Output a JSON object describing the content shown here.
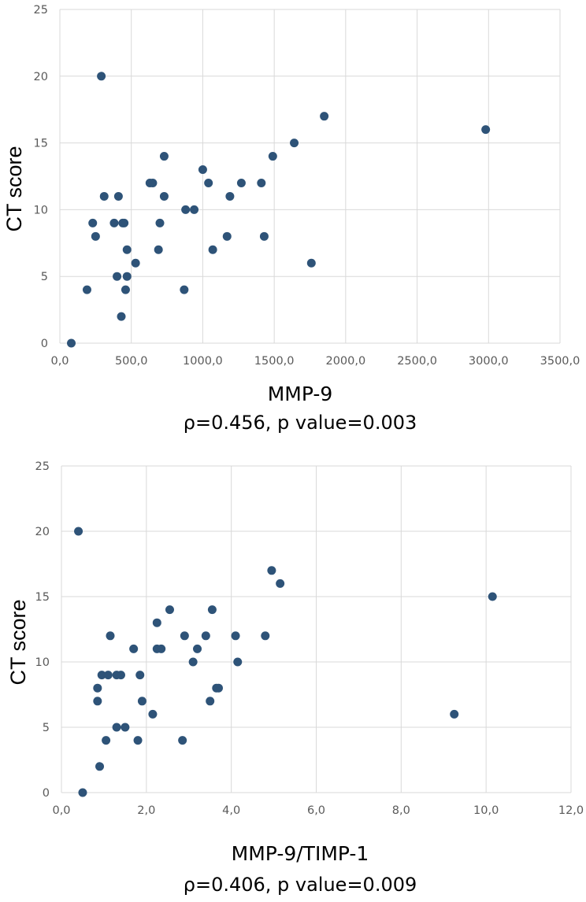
{
  "chart_data": [
    {
      "type": "scatter",
      "title": "",
      "xlabel": "MMP-9",
      "ylabel": "CT score",
      "stat_text": "ρ=0.456, p value=0.003",
      "xlim": [
        0,
        3500
      ],
      "ylim": [
        0,
        25
      ],
      "xticks": [
        0,
        500,
        1000,
        1500,
        2000,
        2500,
        3000,
        3500
      ],
      "xtick_labels": [
        "0,0",
        "500,0",
        "1000,0",
        "1500,0",
        "2000,0",
        "2500,0",
        "3000,0",
        "3500,0"
      ],
      "yticks": [
        0,
        5,
        10,
        15,
        20,
        25
      ],
      "ytick_labels": [
        "0",
        "5",
        "10",
        "15",
        "20",
        "25"
      ],
      "grid": true,
      "points": [
        [
          80,
          0
        ],
        [
          190,
          4
        ],
        [
          230,
          9
        ],
        [
          250,
          8
        ],
        [
          290,
          20
        ],
        [
          310,
          11
        ],
        [
          380,
          9
        ],
        [
          400,
          5
        ],
        [
          410,
          11
        ],
        [
          430,
          2
        ],
        [
          440,
          9
        ],
        [
          450,
          9
        ],
        [
          460,
          4
        ],
        [
          470,
          7
        ],
        [
          470,
          5
        ],
        [
          530,
          6
        ],
        [
          630,
          12
        ],
        [
          650,
          12
        ],
        [
          690,
          7
        ],
        [
          700,
          9
        ],
        [
          730,
          14
        ],
        [
          730,
          11
        ],
        [
          870,
          4
        ],
        [
          880,
          10
        ],
        [
          940,
          10
        ],
        [
          1000,
          13
        ],
        [
          1040,
          12
        ],
        [
          1070,
          7
        ],
        [
          1170,
          8
        ],
        [
          1190,
          11
        ],
        [
          1270,
          12
        ],
        [
          1410,
          12
        ],
        [
          1430,
          8
        ],
        [
          1490,
          14
        ],
        [
          1640,
          15
        ],
        [
          1760,
          6
        ],
        [
          1850,
          17
        ],
        [
          2980,
          16
        ]
      ]
    },
    {
      "type": "scatter",
      "title": "",
      "xlabel": "MMP-9/TIMP-1",
      "ylabel": "CT score",
      "stat_text": "ρ=0.406, p value=0.009",
      "xlim": [
        0,
        12
      ],
      "ylim": [
        0,
        25
      ],
      "xticks": [
        0,
        2,
        4,
        6,
        8,
        10,
        12
      ],
      "xtick_labels": [
        "0,0",
        "2,0",
        "4,0",
        "6,0",
        "8,0",
        "10,0",
        "12,0"
      ],
      "yticks": [
        0,
        5,
        10,
        15,
        20,
        25
      ],
      "ytick_labels": [
        "0",
        "5",
        "10",
        "15",
        "20",
        "25"
      ],
      "grid": true,
      "points": [
        [
          0.4,
          20
        ],
        [
          0.5,
          0
        ],
        [
          0.85,
          8
        ],
        [
          0.85,
          7
        ],
        [
          0.9,
          2
        ],
        [
          0.95,
          9
        ],
        [
          1.05,
          4
        ],
        [
          1.1,
          9
        ],
        [
          1.15,
          12
        ],
        [
          1.3,
          9
        ],
        [
          1.3,
          5
        ],
        [
          1.4,
          9
        ],
        [
          1.5,
          5
        ],
        [
          1.7,
          11
        ],
        [
          1.8,
          4
        ],
        [
          1.85,
          9
        ],
        [
          1.9,
          7
        ],
        [
          2.15,
          6
        ],
        [
          2.25,
          11
        ],
        [
          2.25,
          13
        ],
        [
          2.35,
          11
        ],
        [
          2.55,
          14
        ],
        [
          2.85,
          4
        ],
        [
          2.9,
          12
        ],
        [
          3.1,
          10
        ],
        [
          3.2,
          11
        ],
        [
          3.4,
          12
        ],
        [
          3.5,
          7
        ],
        [
          3.55,
          14
        ],
        [
          3.65,
          8
        ],
        [
          3.7,
          8
        ],
        [
          4.1,
          12
        ],
        [
          4.15,
          10
        ],
        [
          4.8,
          12
        ],
        [
          4.95,
          17
        ],
        [
          5.15,
          16
        ],
        [
          9.25,
          6
        ],
        [
          10.15,
          15
        ]
      ]
    }
  ]
}
